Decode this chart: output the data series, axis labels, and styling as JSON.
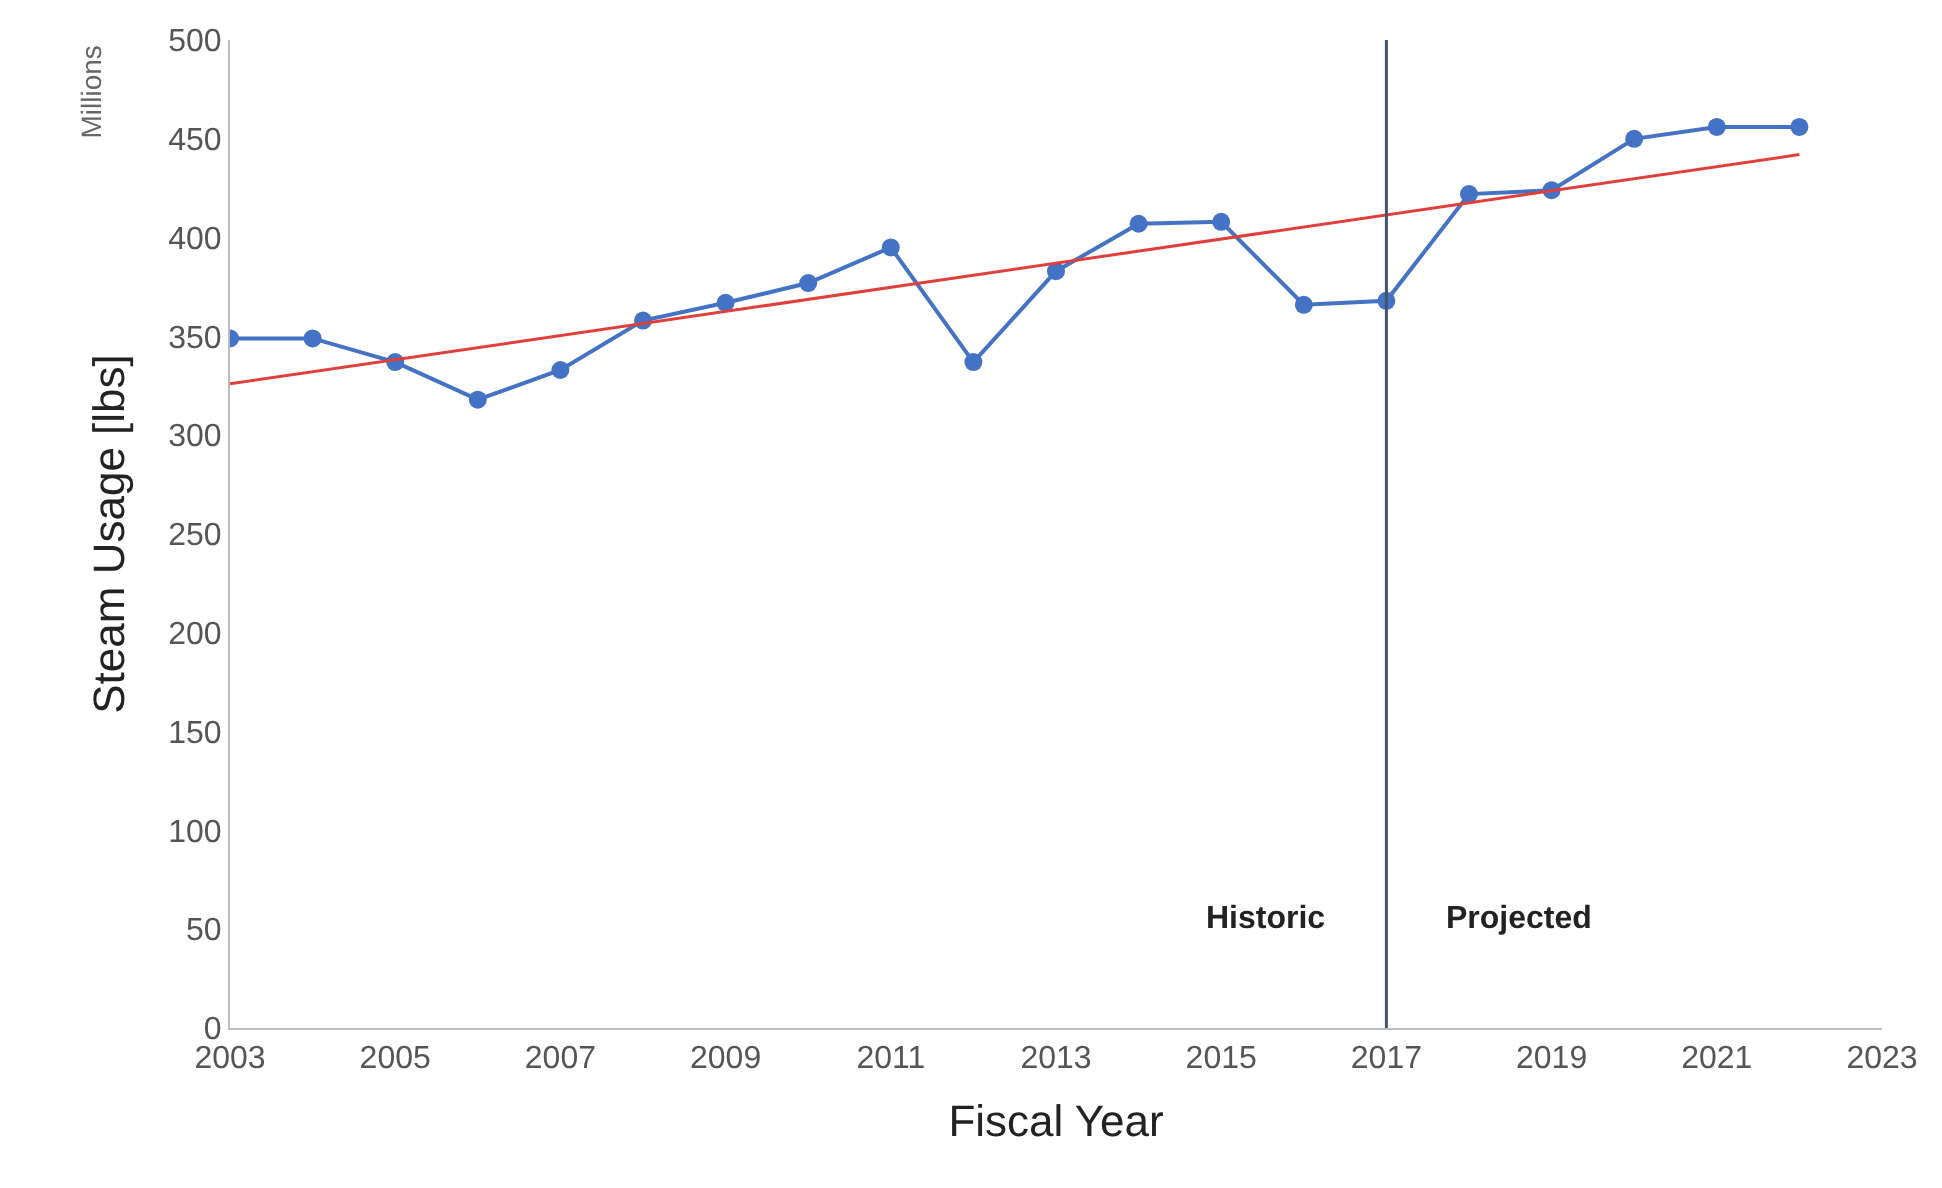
{
  "chart_data": {
    "type": "line",
    "xlabel": "Fiscal Year",
    "ylabel": "Steam Usage [lbs]",
    "x": [
      2003,
      2004,
      2005,
      2006,
      2007,
      2008,
      2009,
      2010,
      2011,
      2012,
      2013,
      2014,
      2015,
      2016,
      2017,
      2018,
      2019,
      2020,
      2021,
      2022
    ],
    "series": [
      {
        "color": "#4472c4",
        "marker": "circle",
        "values": [
          349,
          349,
          337,
          318,
          333,
          358,
          367,
          377,
          395,
          337,
          383,
          407,
          408,
          366,
          368,
          422,
          424,
          450,
          456,
          456
        ]
      },
      {
        "color": "#e0403c",
        "marker": "none",
        "x": [
          2003,
          2022
        ],
        "values": [
          326,
          442
        ]
      }
    ],
    "xlim": [
      2003,
      2023
    ],
    "xticks": [
      2003,
      2005,
      2007,
      2009,
      2011,
      2013,
      2015,
      2017,
      2019,
      2021,
      2023
    ],
    "ylim": [
      0,
      500
    ],
    "yticks": [
      0,
      50,
      100,
      150,
      200,
      250,
      300,
      350,
      400,
      450,
      500
    ],
    "ref_lines": [
      {
        "axis": "x",
        "value": 2017,
        "color": "#44546a"
      }
    ],
    "annotations": [
      "Millions",
      "Historic",
      "Projected"
    ]
  }
}
